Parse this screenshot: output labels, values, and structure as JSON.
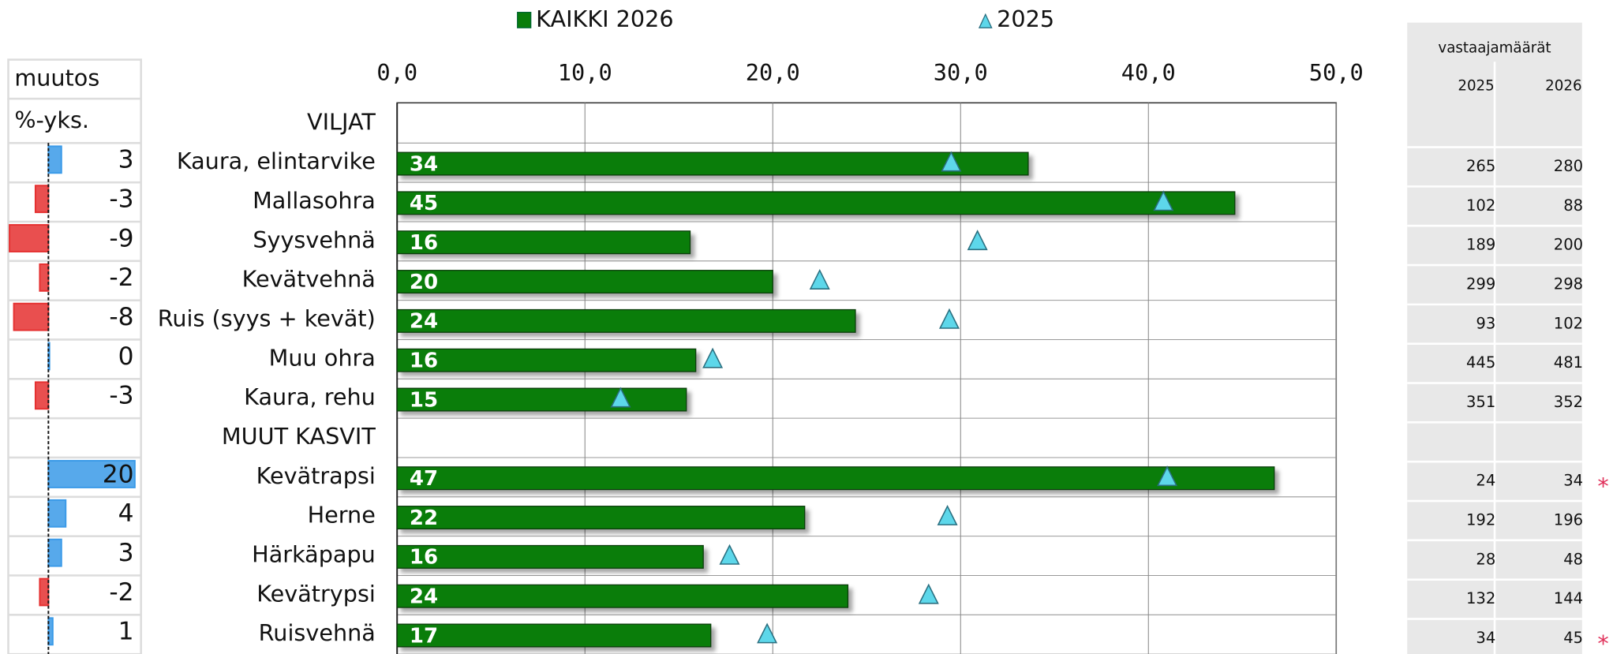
{
  "chart_data": {
    "type": "bar",
    "orientation": "horizontal",
    "categories": [
      "VILJAT",
      "Kaura, elintarvike",
      "Mallasohra",
      "Syysvehnä",
      "Kevätvehnä",
      "Ruis (syys + kevät)",
      "Muu ohra",
      "Kaura, rehu",
      "MUUT KASVIT",
      "Kevätrapsi",
      "Herne",
      "Härkäpapu",
      "Kevätrypsi",
      "Ruisvehnä"
    ],
    "series": [
      {
        "name": "KAIKKI 2026",
        "color": "#0a7d0a",
        "marker": "bar",
        "values": [
          null,
          33.6,
          44.6,
          15.6,
          20.0,
          24.4,
          15.9,
          15.4,
          null,
          46.7,
          21.7,
          16.3,
          24.0,
          16.7
        ],
        "value_labels": [
          null,
          "34",
          "45",
          "16",
          "20",
          "24",
          "16",
          "15",
          null,
          "47",
          "22",
          "16",
          "24",
          "17"
        ]
      },
      {
        "name": "2025",
        "color": "#5dd7ea",
        "marker": "triangle",
        "values": [
          null,
          29.5,
          40.8,
          30.9,
          22.5,
          29.4,
          16.8,
          11.9,
          null,
          41.0,
          29.3,
          17.7,
          28.3,
          19.7
        ]
      }
    ],
    "xlim": [
      0,
      50
    ],
    "xticks": [
      {
        "value": 0,
        "label": "0,0"
      },
      {
        "value": 10,
        "label": "10,0"
      },
      {
        "value": 20,
        "label": "20,0"
      },
      {
        "value": 30,
        "label": "30,0"
      },
      {
        "value": 40,
        "label": "40,0"
      },
      {
        "value": 50,
        "label": "50,0"
      }
    ],
    "grid": true
  },
  "change_table": {
    "header": "muutos",
    "unit": "%-yks.",
    "values": [
      null,
      3,
      -3,
      -9,
      -2,
      -8,
      0,
      -3,
      null,
      20,
      4,
      3,
      -2,
      1
    ],
    "positive_color": "#3a9ae8",
    "negative_color": "#e53030"
  },
  "respondents": {
    "title": "vastaajamäärät",
    "columns": [
      "2025",
      "2026"
    ],
    "rows": [
      [
        null,
        null
      ],
      [
        265,
        280
      ],
      [
        102,
        88
      ],
      [
        189,
        200
      ],
      [
        299,
        298
      ],
      [
        93,
        102
      ],
      [
        445,
        481
      ],
      [
        351,
        352
      ],
      [
        null,
        null
      ],
      [
        24,
        34
      ],
      [
        192,
        196
      ],
      [
        28,
        48
      ],
      [
        132,
        144
      ],
      [
        34,
        45
      ]
    ],
    "notes": [
      null,
      null,
      null,
      null,
      null,
      null,
      null,
      null,
      null,
      "*",
      null,
      null,
      null,
      "*"
    ]
  }
}
